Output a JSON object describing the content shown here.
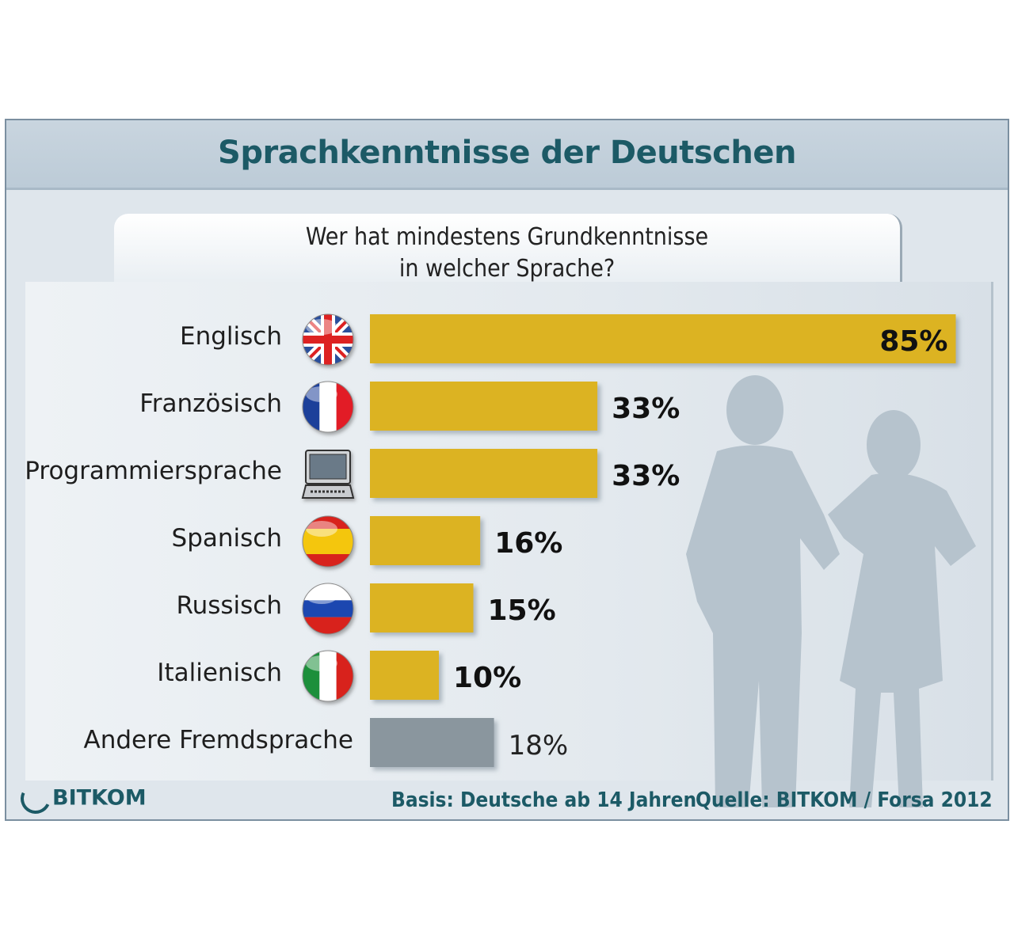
{
  "header": {
    "title": "Sprachkenntnisse der Deutschen"
  },
  "question": {
    "line1": "Wer hat mindestens Grundkenntnisse",
    "line2": "in welcher Sprache?"
  },
  "footer": {
    "logo_text": "BITKOM",
    "basis": "Basis: Deutsche ab 14 Jahren",
    "source": "Quelle: BITKOM / Forsa 2012"
  },
  "colors": {
    "bar": "#dcb321",
    "bar_other": "#8a969e",
    "title": "#1c5a66",
    "silhouette": "#b6c3cd"
  },
  "chart_data": {
    "type": "bar",
    "orientation": "horizontal",
    "title": "Sprachkenntnisse der Deutschen",
    "subtitle": "Wer hat mindestens Grundkenntnisse in welcher Sprache?",
    "unit": "%",
    "xlim": [
      0,
      100
    ],
    "grid": false,
    "categories": [
      "Englisch",
      "Französisch",
      "Programmiersprache",
      "Spanisch",
      "Russisch",
      "Italienisch",
      "Andere Fremdsprache"
    ],
    "values": [
      85,
      33,
      33,
      16,
      15,
      10,
      18
    ],
    "value_labels": [
      "85%",
      "33%",
      "33%",
      "16%",
      "15%",
      "10%",
      "18%"
    ],
    "icons": [
      "uk-flag-icon",
      "france-flag-icon",
      "laptop-icon",
      "spain-flag-icon",
      "russia-flag-icon",
      "italy-flag-icon",
      ""
    ],
    "highlight": [
      true,
      true,
      true,
      true,
      true,
      true,
      false
    ]
  }
}
